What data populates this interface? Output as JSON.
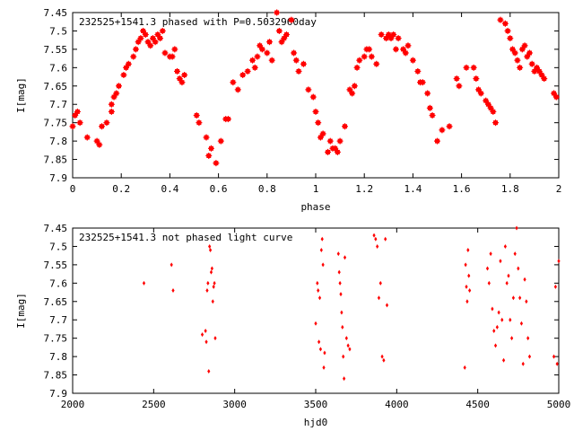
{
  "chart_data": [
    {
      "type": "scatter",
      "title": "232525+1541.3 phased with P=0.5032960day",
      "xlabel": "phase",
      "ylabel": "I[mag]",
      "xlim": [
        0,
        2
      ],
      "ylim": [
        7.9,
        7.45
      ],
      "y_inverted": true,
      "xticks": [
        "0",
        "0.2",
        "0.4",
        "0.6",
        "0.8",
        "1",
        "1.2",
        "1.4",
        "1.6",
        "1.8",
        "2"
      ],
      "yticks": [
        "7.45",
        "7.5",
        "7.55",
        "7.6",
        "7.65",
        "7.7",
        "7.75",
        "7.8",
        "7.85",
        "7.9"
      ],
      "grid": false,
      "legend": "none",
      "marker": "filled-square-cross",
      "color": "#ff0000",
      "x": [
        0.0,
        0.01,
        0.02,
        0.03,
        0.06,
        0.1,
        0.11,
        0.12,
        0.14,
        0.16,
        0.16,
        0.17,
        0.18,
        0.19,
        0.21,
        0.22,
        0.23,
        0.25,
        0.26,
        0.27,
        0.28,
        0.29,
        0.3,
        0.31,
        0.32,
        0.33,
        0.34,
        0.35,
        0.36,
        0.37,
        0.38,
        0.4,
        0.41,
        0.42,
        0.43,
        0.44,
        0.45,
        0.46,
        0.51,
        0.52,
        0.55,
        0.56,
        0.57,
        0.59,
        0.61,
        0.63,
        0.64,
        0.66,
        0.68,
        0.7,
        0.72,
        0.74,
        0.75,
        0.76,
        0.77,
        0.78,
        0.8,
        0.81,
        0.82,
        0.84,
        0.85,
        0.86,
        0.87,
        0.88,
        0.9,
        0.91,
        0.92,
        0.93,
        0.95,
        0.97,
        0.99,
        1.0,
        1.01,
        1.02,
        1.03,
        1.05,
        1.06,
        1.07,
        1.08,
        1.09,
        1.1,
        1.12,
        1.14,
        1.15,
        1.16,
        1.17,
        1.18,
        1.2,
        1.21,
        1.22,
        1.23,
        1.25,
        1.27,
        1.29,
        1.3,
        1.31,
        1.32,
        1.33,
        1.34,
        1.36,
        1.37,
        1.38,
        1.4,
        1.42,
        1.43,
        1.44,
        1.46,
        1.47,
        1.48,
        1.5,
        1.52,
        1.55,
        1.58,
        1.59,
        1.62,
        1.65,
        1.66,
        1.67,
        1.68,
        1.7,
        1.71,
        1.72,
        1.73,
        1.74,
        1.76,
        1.78,
        1.79,
        1.8,
        1.81,
        1.82,
        1.83,
        1.84,
        1.85,
        1.86,
        1.87,
        1.88,
        1.89,
        1.9,
        1.91,
        1.92,
        1.93,
        1.94,
        1.98,
        1.99
      ],
      "y": [
        7.76,
        7.73,
        7.72,
        7.75,
        7.79,
        7.8,
        7.81,
        7.76,
        7.75,
        7.72,
        7.7,
        7.68,
        7.67,
        7.65,
        7.62,
        7.6,
        7.59,
        7.57,
        7.55,
        7.53,
        7.52,
        7.5,
        7.51,
        7.53,
        7.54,
        7.52,
        7.53,
        7.51,
        7.52,
        7.5,
        7.56,
        7.57,
        7.57,
        7.55,
        7.61,
        7.63,
        7.64,
        7.62,
        7.73,
        7.75,
        7.79,
        7.84,
        7.82,
        7.86,
        7.8,
        7.74,
        7.74,
        7.64,
        7.66,
        7.62,
        7.61,
        7.58,
        7.6,
        7.57,
        7.54,
        7.55,
        7.56,
        7.53,
        7.58,
        7.45,
        7.5,
        7.53,
        7.52,
        7.51,
        7.47,
        7.56,
        7.58,
        7.61,
        7.59,
        7.66,
        7.68,
        7.72,
        7.75,
        7.79,
        7.78,
        7.83,
        7.8,
        7.82,
        7.82,
        7.83,
        7.8,
        7.76,
        7.66,
        7.67,
        7.65,
        7.6,
        7.58,
        7.57,
        7.55,
        7.55,
        7.57,
        7.59,
        7.51,
        7.52,
        7.51,
        7.52,
        7.51,
        7.55,
        7.52,
        7.55,
        7.56,
        7.54,
        7.58,
        7.61,
        7.64,
        7.64,
        7.67,
        7.71,
        7.73,
        7.8,
        7.77,
        7.76,
        7.63,
        7.65,
        7.6,
        7.6,
        7.63,
        7.66,
        7.67,
        7.69,
        7.7,
        7.71,
        7.72,
        7.75,
        7.47,
        7.48,
        7.5,
        7.52,
        7.55,
        7.56,
        7.58,
        7.6,
        7.55,
        7.54,
        7.57,
        7.56,
        7.59,
        7.61,
        7.6,
        7.61,
        7.62,
        7.63,
        7.67,
        7.68
      ]
    },
    {
      "type": "scatter",
      "title": "232525+1541.3 not phased light curve",
      "xlabel": "hjd0",
      "ylabel": "I[mag]",
      "xlim": [
        2000,
        5000
      ],
      "ylim": [
        7.9,
        7.45
      ],
      "y_inverted": true,
      "xticks": [
        "2000",
        "2500",
        "3000",
        "3500",
        "4000",
        "4500",
        "5000"
      ],
      "yticks": [
        "7.45",
        "7.5",
        "7.55",
        "7.6",
        "7.65",
        "7.7",
        "7.75",
        "7.8",
        "7.85",
        "7.9"
      ],
      "grid": false,
      "legend": "none",
      "marker": "small-diamond",
      "color": "#ff0000",
      "x": [
        2440,
        2610,
        2620,
        2800,
        2820,
        2825,
        2830,
        2835,
        2840,
        2845,
        2850,
        2855,
        2860,
        2865,
        2870,
        2875,
        2880,
        3500,
        3510,
        3515,
        3520,
        3525,
        3530,
        3535,
        3540,
        3545,
        3550,
        3555,
        3640,
        3645,
        3650,
        3655,
        3660,
        3665,
        3670,
        3675,
        3680,
        3690,
        3700,
        3710,
        3860,
        3870,
        3880,
        3890,
        3900,
        3910,
        3920,
        3930,
        3940,
        4420,
        4425,
        4430,
        4435,
        4440,
        4445,
        4450,
        4560,
        4570,
        4580,
        4590,
        4600,
        4610,
        4620,
        4630,
        4640,
        4650,
        4660,
        4670,
        4680,
        4690,
        4700,
        4710,
        4720,
        4730,
        4740,
        4750,
        4760,
        4770,
        4780,
        4790,
        4800,
        4810,
        4820,
        4970,
        4980,
        4990,
        5000
      ],
      "y": [
        7.6,
        7.55,
        7.62,
        7.74,
        7.73,
        7.76,
        7.62,
        7.6,
        7.84,
        7.5,
        7.51,
        7.57,
        7.56,
        7.65,
        7.61,
        7.6,
        7.75,
        7.71,
        7.6,
        7.62,
        7.76,
        7.64,
        7.78,
        7.51,
        7.48,
        7.55,
        7.83,
        7.79,
        7.52,
        7.57,
        7.6,
        7.63,
        7.68,
        7.72,
        7.8,
        7.86,
        7.53,
        7.75,
        7.77,
        7.78,
        7.47,
        7.48,
        7.5,
        7.64,
        7.6,
        7.8,
        7.81,
        7.48,
        7.66,
        7.83,
        7.55,
        7.61,
        7.65,
        7.51,
        7.58,
        7.62,
        7.56,
        7.6,
        7.52,
        7.67,
        7.73,
        7.77,
        7.72,
        7.68,
        7.54,
        7.7,
        7.81,
        7.5,
        7.6,
        7.58,
        7.7,
        7.75,
        7.64,
        7.52,
        7.45,
        7.56,
        7.64,
        7.71,
        7.82,
        7.59,
        7.65,
        7.75,
        7.8,
        7.8,
        7.61,
        7.82,
        7.54
      ]
    }
  ]
}
